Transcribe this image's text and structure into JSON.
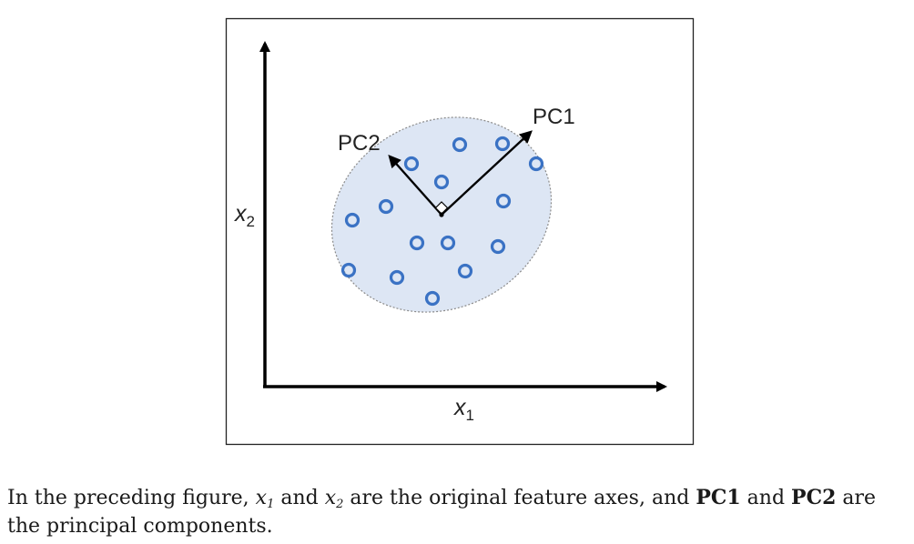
{
  "diagram": {
    "x_axis_label": {
      "var": "x",
      "sub": "1"
    },
    "y_axis_label": {
      "var": "x",
      "sub": "2"
    },
    "pc1_label": "PC1",
    "pc2_label": "PC2",
    "point_count": 16,
    "colors": {
      "point": "#3a72c4",
      "ellipse_fill": "#dde6f4",
      "ellipse_stroke": "#8a8a8a",
      "axis": "#000000"
    }
  },
  "caption": {
    "p1": "In the preceding figure, ",
    "x1": {
      "var": "x",
      "sub": "1"
    },
    "p2": " and ",
    "x2": {
      "var": "x",
      "sub": "2"
    },
    "p3": " are the original feature axes, and ",
    "pc1": "PC1",
    "p4": " and ",
    "pc2": "PC2",
    "p5": " are the principal components."
  }
}
